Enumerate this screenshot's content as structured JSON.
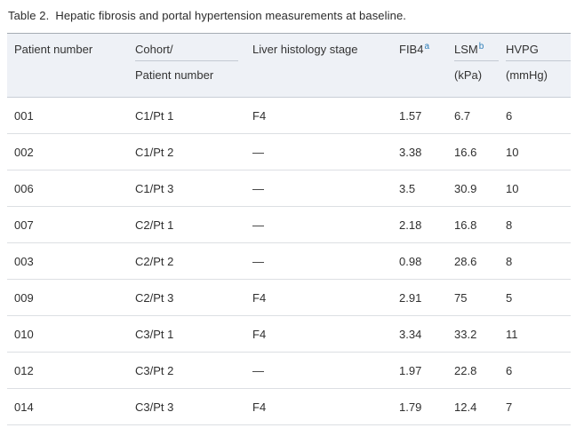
{
  "caption": {
    "label": "Table 2.",
    "text": "Hepatic fibrosis and portal hypertension measurements at baseline."
  },
  "colors": {
    "header_background": "#eef1f6",
    "superscript_link": "#2e7eb8",
    "table_top_border": "#a6acb4",
    "row_divider": "#dcdfe3",
    "body_text": "#2f2f2f"
  },
  "columns": [
    {
      "line1": "Patient number",
      "sup": "",
      "line2": ""
    },
    {
      "line1": "Cohort/",
      "sup": "",
      "line2": "Patient number"
    },
    {
      "line1": "Liver histology stage",
      "sup": "",
      "line2": ""
    },
    {
      "line1": "FIB4",
      "sup": "a",
      "line2": ""
    },
    {
      "line1": "LSM",
      "sup": "b",
      "line2": "(kPa)"
    },
    {
      "line1": "HVPG",
      "sup": "",
      "line2": "(mmHg)"
    }
  ],
  "rows": [
    [
      "001",
      "C1/Pt 1",
      "F4",
      "1.57",
      "6.7",
      "6"
    ],
    [
      "002",
      "C1/Pt 2",
      "—",
      "3.38",
      "16.6",
      "10"
    ],
    [
      "006",
      "C1/Pt 3",
      "—",
      "3.5",
      "30.9",
      "10"
    ],
    [
      "007",
      "C2/Pt 1",
      "—",
      "2.18",
      "16.8",
      "8"
    ],
    [
      "003",
      "C2/Pt 2",
      "—",
      "0.98",
      "28.6",
      "8"
    ],
    [
      "009",
      "C2/Pt 3",
      "F4",
      "2.91",
      "75",
      "5"
    ],
    [
      "010",
      "C3/Pt 1",
      "F4",
      "3.34",
      "33.2",
      "11"
    ],
    [
      "012",
      "C3/Pt 2",
      "—",
      "1.97",
      "22.8",
      "6"
    ],
    [
      "014",
      "C3/Pt 3",
      "F4",
      "1.79",
      "12.4",
      "7"
    ]
  ]
}
